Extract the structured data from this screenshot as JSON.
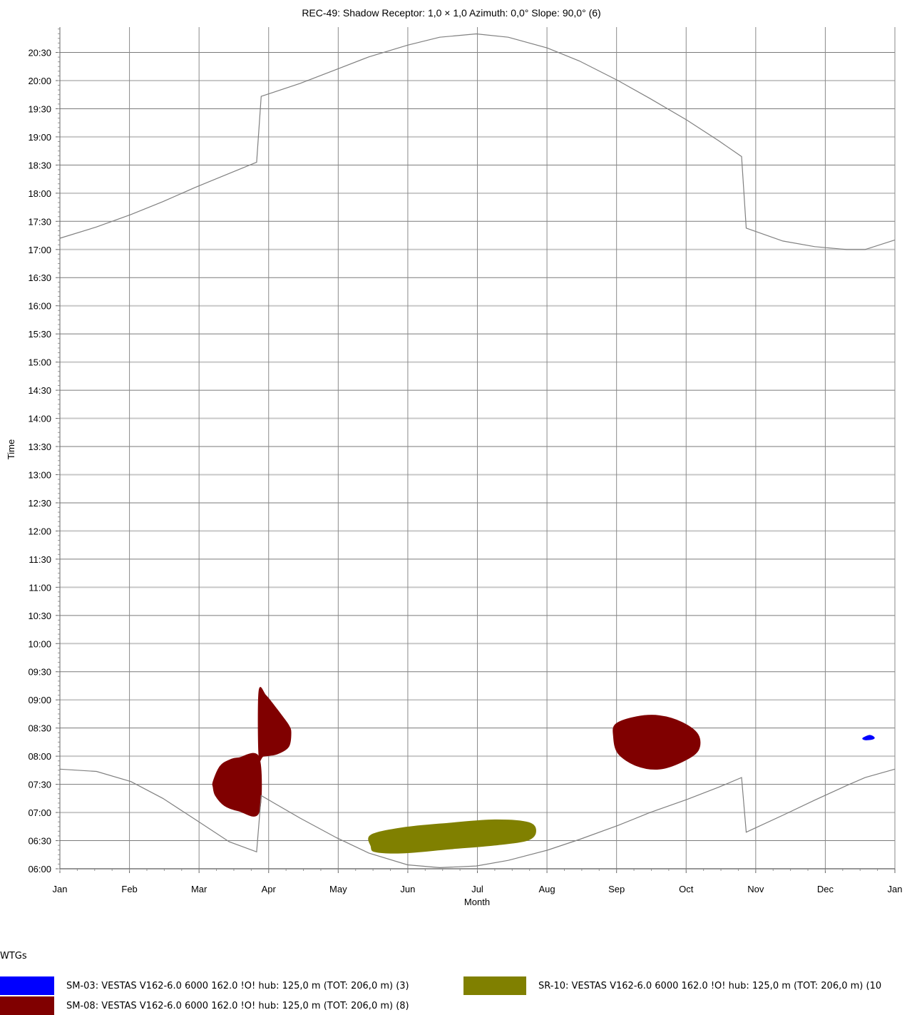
{
  "chart_data": {
    "type": "scatter",
    "title": "REC-49: Shadow Receptor: 1,0 × 1,0  Azimuth: 0,0°  Slope: 90,0° (6)",
    "xlabel": "Month",
    "ylabel": "Time",
    "x_ticks": [
      "Jan",
      "Feb",
      "Mar",
      "Apr",
      "May",
      "Jun",
      "Jul",
      "Aug",
      "Sep",
      "Oct",
      "Nov",
      "Dec",
      "Jan"
    ],
    "y_ticks": [
      "06:00",
      "06:30",
      "07:00",
      "07:30",
      "08:00",
      "08:30",
      "09:00",
      "09:30",
      "10:00",
      "10:30",
      "11:00",
      "11:30",
      "12:00",
      "12:30",
      "13:00",
      "13:30",
      "14:00",
      "14:30",
      "15:00",
      "15:30",
      "16:00",
      "16:30",
      "17:00",
      "17:30",
      "18:00",
      "18:30",
      "19:00",
      "19:30",
      "20:00",
      "20:30"
    ],
    "xlim_day_of_year": [
      0,
      365
    ],
    "ylim_hours": [
      6,
      20.95
    ],
    "grid": true,
    "sunset_curve": {
      "day": [
        0,
        16,
        31,
        45,
        59,
        74,
        86,
        88,
        105,
        121,
        135,
        152,
        166,
        182,
        196,
        213,
        227,
        244,
        258,
        274,
        288,
        298,
        300,
        316,
        330,
        344,
        352,
        365
      ],
      "hour": [
        17.2,
        17.4,
        17.62,
        17.85,
        18.1,
        18.35,
        18.55,
        19.72,
        19.95,
        20.2,
        20.42,
        20.63,
        20.77,
        20.83,
        20.77,
        20.58,
        20.35,
        20.0,
        19.68,
        19.3,
        18.93,
        18.65,
        17.38,
        17.15,
        17.05,
        17.0,
        17.0,
        17.17
      ]
    },
    "sunrise_curve": {
      "day": [
        0,
        16,
        31,
        45,
        59,
        74,
        86,
        88,
        105,
        121,
        135,
        152,
        166,
        182,
        196,
        213,
        227,
        244,
        258,
        274,
        288,
        298,
        300,
        316,
        330,
        344,
        352,
        365
      ],
      "hour": [
        7.77,
        7.73,
        7.55,
        7.25,
        6.88,
        6.48,
        6.3,
        7.3,
        6.9,
        6.55,
        6.28,
        6.07,
        6.02,
        6.05,
        6.15,
        6.33,
        6.52,
        6.77,
        7.0,
        7.23,
        7.45,
        7.62,
        6.65,
        6.95,
        7.22,
        7.48,
        7.62,
        7.77
      ]
    },
    "series": [
      {
        "name": "SM-03: VESTAS V162-6.0 6000 162.0 !O! hub: 125,0 m (TOT: 206,0 m) (3)",
        "color": "#0000ff",
        "region": {
          "day": [
            351,
            354,
            356,
            355,
            352
          ],
          "hour": [
            8.32,
            8.37,
            8.33,
            8.3,
            8.29
          ]
        }
      },
      {
        "name": "SM-08: VESTAS V162-6.0 6000 162.0 !O! hub: 125,0 m (TOT: 206,0 m) (8)",
        "color": "#800000",
        "region": {
          "day": [
            67,
            70,
            74,
            78,
            87,
            87,
            78,
            72,
            68,
            67
          ],
          "hour": [
            7.55,
            7.82,
            7.93,
            7.97,
            7.98,
            7.0,
            7.03,
            7.12,
            7.3,
            7.45
          ]
        },
        "region_2": {
          "day": [
            87,
            90,
            94,
            97,
            100,
            101,
            100,
            95,
            89,
            87
          ],
          "hour": [
            9.15,
            9.08,
            8.88,
            8.72,
            8.55,
            8.42,
            8.17,
            8.04,
            8.0,
            8.0
          ]
        },
        "region_3": {
          "day": [
            243,
            252,
            262,
            272,
            279,
            279,
            272,
            262,
            252,
            244,
            242
          ],
          "hour": [
            8.57,
            8.7,
            8.72,
            8.6,
            8.38,
            8.1,
            7.9,
            7.77,
            7.83,
            8.05,
            8.35
          ]
        }
      },
      {
        "name": "SR-10: VESTAS V162-6.0 6000 162.0 !O! hub: 125,0 m (TOT: 206,0 m) (10",
        "color": "#808000",
        "region": {
          "day": [
            136,
            150,
            170,
            190,
            205,
            208,
            204,
            190,
            170,
            150,
            138,
            136
          ],
          "hour": [
            6.6,
            6.73,
            6.81,
            6.87,
            6.82,
            6.65,
            6.5,
            6.42,
            6.35,
            6.28,
            6.3,
            6.4
          ]
        }
      }
    ]
  },
  "legend": {
    "title": "WTGs",
    "items": [
      {
        "label": "SM-03: VESTAS V162-6.0 6000 162.0 !O! hub: 125,0 m (TOT: 206,0 m) (3)",
        "color": "#0000ff"
      },
      {
        "label": "SM-08: VESTAS V162-6.0 6000 162.0 !O! hub: 125,0 m (TOT: 206,0 m) (8)",
        "color": "#800000"
      },
      {
        "label": "SR-10: VESTAS V162-6.0 6000 162.0 !O! hub: 125,0 m (TOT: 206,0 m) (10",
        "color": "#808000"
      }
    ]
  }
}
